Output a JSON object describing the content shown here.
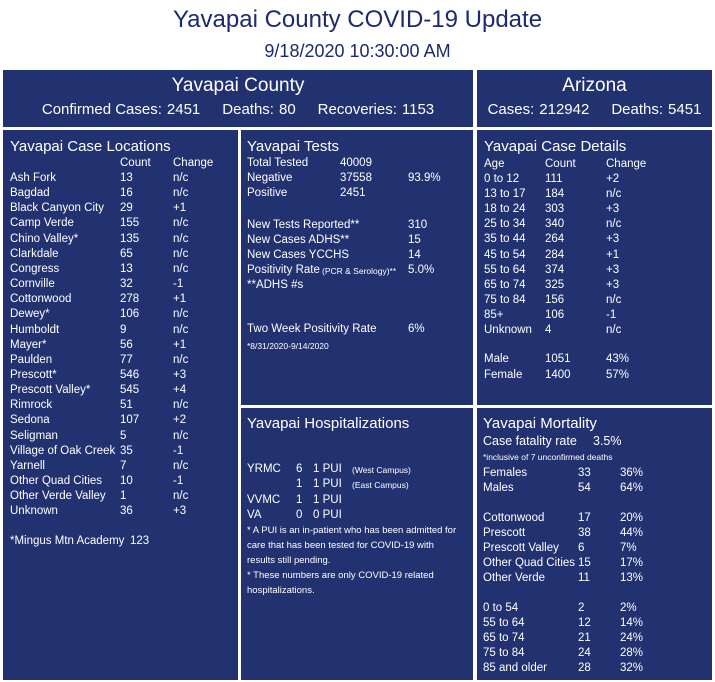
{
  "header": {
    "title": "Yavapai County COVID-19 Update",
    "date": "9/18/2020 10:30:00 AM"
  },
  "yavapai_county": {
    "title": "Yavapai County",
    "stats": [
      {
        "label": "Confirmed Cases:",
        "value": 2451
      },
      {
        "label": "Deaths:",
        "value": 80
      },
      {
        "label": "Recoveries:",
        "value": 1153
      }
    ]
  },
  "arizona": {
    "title": "Arizona",
    "stats": [
      {
        "label": "Cases:",
        "value": 212942
      },
      {
        "label": "Deaths:",
        "value": 5451
      }
    ]
  },
  "case_locations": {
    "title": "Yavapai Case Locations",
    "columns": [
      "Count",
      "Change"
    ],
    "rows": [
      [
        "Ash Fork",
        13,
        "n/c"
      ],
      [
        "Bagdad",
        16,
        "n/c"
      ],
      [
        "Black Canyon City",
        29,
        "+1"
      ],
      [
        "Camp Verde",
        155,
        "n/c"
      ],
      [
        "Chino Valley*",
        135,
        "n/c"
      ],
      [
        "Clarkdale",
        65,
        "n/c"
      ],
      [
        "Congress",
        13,
        "n/c"
      ],
      [
        "Cornville",
        32,
        "-1"
      ],
      [
        "Cottonwood",
        278,
        "+1"
      ],
      [
        "Dewey*",
        106,
        "n/c"
      ],
      [
        "Humboldt",
        9,
        "n/c"
      ],
      [
        "Mayer*",
        56,
        "+1"
      ],
      [
        "Paulden",
        77,
        "n/c"
      ],
      [
        "Prescott*",
        546,
        "+3"
      ],
      [
        "Prescott Valley*",
        545,
        "+4"
      ],
      [
        "Rimrock",
        51,
        "n/c"
      ],
      [
        "Sedona",
        107,
        "+2"
      ],
      [
        "Seligman",
        5,
        "n/c"
      ],
      [
        "Village of Oak Creek",
        35,
        "-1"
      ],
      [
        "Yarnell",
        7,
        "n/c"
      ],
      [
        "Other Quad Cities",
        10,
        "-1"
      ],
      [
        "Other Verde Valley",
        1,
        "n/c"
      ],
      [
        "Unknown",
        36,
        "+3"
      ]
    ],
    "note": [
      "*Mingus Mtn Academy",
      123
    ]
  },
  "tests": {
    "title": "Yavapai Tests",
    "summary": [
      [
        "Total Tested",
        40009
      ],
      [
        "Negative",
        37558,
        "93.9%"
      ],
      [
        "Positive",
        2451
      ]
    ],
    "daily": [
      [
        "New Tests Reported**",
        310
      ],
      [
        "New Cases ADHS**",
        15
      ],
      [
        "New Cases YCCHS",
        14
      ]
    ],
    "positivity": {
      "label": "Positivity Rate",
      "sublabel": "(PCR & Serology)**",
      "value": "5.0%"
    },
    "footnote": "**ADHS #s",
    "two_week": {
      "label": "Two Week Positivity Rate",
      "value": "6%",
      "note": "*8/31/2020-9/14/2020"
    }
  },
  "hospitalizations": {
    "title": "Yavapai Hospitalizations",
    "rows": [
      {
        "site": "YRMC",
        "count": 6,
        "pui": "1 PUI",
        "campus": "(West Campus)"
      },
      {
        "count": 1,
        "pui": "1 PUI",
        "campus": "(East Campus)"
      },
      {
        "site": "VVMC",
        "count": 1,
        "pui": "1 PUI"
      },
      {
        "site": "VA",
        "count": 0,
        "pui": "0 PUI"
      }
    ],
    "notes": [
      "* A PUI is an in-patient who has been admitted for care that has been tested for COVID-19 with results still pending.",
      "* These numbers are only COVID-19 related hospitalizations."
    ]
  },
  "case_details": {
    "title": "Yavapai Case Details",
    "columns": [
      "Age",
      "Count",
      "Change"
    ],
    "rows": [
      [
        "0 to 12",
        111,
        "+2"
      ],
      [
        "13 to 17",
        184,
        "n/c"
      ],
      [
        "18 to 24",
        303,
        "+3"
      ],
      [
        "25 to 34",
        340,
        "n/c"
      ],
      [
        "35 to 44",
        264,
        "+3"
      ],
      [
        "45 to 54",
        284,
        "+1"
      ],
      [
        "55 to 64",
        374,
        "+3"
      ],
      [
        "65 to 74",
        325,
        "+3"
      ],
      [
        "75 to 84",
        156,
        "n/c"
      ],
      [
        "85+",
        106,
        "-1"
      ],
      [
        "Unknown",
        4,
        "n/c"
      ]
    ],
    "sex": [
      [
        "Male",
        1051,
        "43%"
      ],
      [
        "Female",
        1400,
        "57%"
      ]
    ]
  },
  "mortality": {
    "title": "Yavapai Mortality",
    "cfr": {
      "label": "Case fatality rate",
      "value": "3.5%",
      "note": "*inclusive of 7 unconfirmed deaths"
    },
    "sex": [
      [
        "Females",
        33,
        "36%"
      ],
      [
        "Males",
        54,
        "64%"
      ]
    ],
    "area": [
      [
        "Cottonwood",
        17,
        "20%"
      ],
      [
        "Prescott",
        38,
        "44%"
      ],
      [
        "Prescott Valley",
        6,
        "7%"
      ],
      [
        "Other Quad Cities",
        15,
        "17%"
      ],
      [
        "Other Verde",
        11,
        "13%"
      ]
    ],
    "age": [
      [
        "0 to 54",
        2,
        "2%"
      ],
      [
        "55 to 64",
        12,
        "14%"
      ],
      [
        "65 to 74",
        21,
        "24%"
      ],
      [
        "75 to 84",
        24,
        "28%"
      ],
      [
        "85 and older",
        28,
        "32%"
      ]
    ]
  }
}
